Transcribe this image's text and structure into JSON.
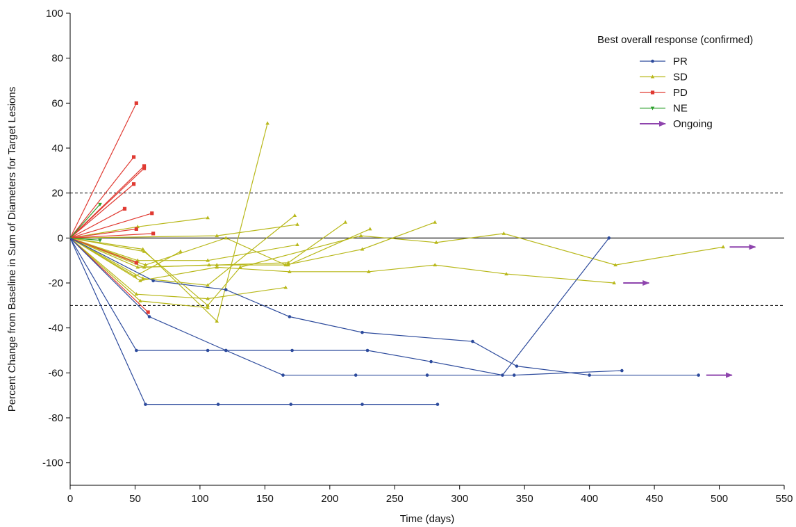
{
  "chart_data": {
    "type": "line",
    "title": "",
    "xlabel": "Time (days)",
    "ylabel": "Percent Change from Baseline in Sum of Diameters for Target Lesions",
    "xlim": [
      0,
      550
    ],
    "ylim": [
      -110,
      100
    ],
    "xticks": [
      0,
      50,
      100,
      150,
      200,
      250,
      300,
      350,
      400,
      450,
      500,
      550
    ],
    "yticks": [
      100,
      80,
      60,
      40,
      20,
      0,
      -20,
      -40,
      -60,
      -80,
      -100
    ],
    "reference_lines": [
      {
        "y": 20,
        "style": "dashed"
      },
      {
        "y": 0,
        "style": "solid"
      },
      {
        "y": -30,
        "style": "dashed"
      }
    ],
    "legend": {
      "title": "Best overall response (confirmed)",
      "placement": "top-right",
      "entries": [
        {
          "label": "PR",
          "color": "#2c4a9c",
          "marker": "circle"
        },
        {
          "label": "SD",
          "color": "#b8b81a",
          "marker": "triangle"
        },
        {
          "label": "PD",
          "color": "#e03a32",
          "marker": "square"
        },
        {
          "label": "NE",
          "color": "#2ca02c",
          "marker": "triangle-down"
        },
        {
          "label": "Ongoing",
          "color": "#8e44ad",
          "marker": "arrow"
        }
      ]
    },
    "series": [
      {
        "group": "PR",
        "color": "#2c4a9c",
        "points": [
          [
            0,
            0
          ],
          [
            51,
            -50
          ],
          [
            106,
            -50
          ],
          [
            120,
            -50
          ],
          [
            171,
            -50
          ],
          [
            229,
            -50
          ],
          [
            278,
            -55
          ],
          [
            333,
            -61
          ],
          [
            415,
            0
          ]
        ]
      },
      {
        "group": "PR",
        "color": "#2c4a9c",
        "points": [
          [
            0,
            0
          ],
          [
            58,
            -74
          ],
          [
            114,
            -74
          ],
          [
            170,
            -74
          ],
          [
            225,
            -74
          ],
          [
            283,
            -74
          ]
        ]
      },
      {
        "group": "PR",
        "color": "#2c4a9c",
        "points": [
          [
            0,
            0
          ],
          [
            61,
            -35
          ],
          [
            120,
            -50
          ],
          [
            164,
            -61
          ],
          [
            220,
            -61
          ],
          [
            275,
            -61
          ],
          [
            342,
            -61
          ],
          [
            425,
            -59
          ]
        ]
      },
      {
        "group": "PR",
        "color": "#2c4a9c",
        "points": [
          [
            0,
            0
          ],
          [
            64,
            -19
          ],
          [
            120,
            -23
          ],
          [
            169,
            -35
          ],
          [
            225,
            -42
          ],
          [
            310,
            -46
          ],
          [
            344,
            -57
          ],
          [
            400,
            -61
          ],
          [
            484,
            -61
          ]
        ]
      },
      {
        "group": "SD",
        "color": "#b8b81a",
        "points": [
          [
            0,
            0
          ],
          [
            52,
            5
          ],
          [
            106,
            9
          ]
        ]
      },
      {
        "group": "SD",
        "color": "#b8b81a",
        "points": [
          [
            0,
            0
          ],
          [
            113,
            1
          ],
          [
            175,
            6
          ]
        ]
      },
      {
        "group": "SD",
        "color": "#b8b81a",
        "points": [
          [
            0,
            0
          ],
          [
            56,
            -5
          ],
          [
            113,
            -37
          ],
          [
            152,
            51
          ]
        ]
      },
      {
        "group": "SD",
        "color": "#b8b81a",
        "points": [
          [
            0,
            0
          ],
          [
            52,
            -13
          ],
          [
            113,
            -12
          ],
          [
            168,
            -11
          ],
          [
            212,
            7
          ]
        ]
      },
      {
        "group": "SD",
        "color": "#b8b81a",
        "points": [
          [
            0,
            0
          ],
          [
            57,
            -13
          ],
          [
            107,
            -12
          ],
          [
            168,
            -12
          ],
          [
            231,
            4
          ]
        ]
      },
      {
        "group": "SD",
        "color": "#b8b81a",
        "points": [
          [
            0,
            0
          ],
          [
            58,
            -12
          ],
          [
            120,
            0
          ],
          [
            166,
            -12
          ],
          [
            225,
            -5
          ],
          [
            281,
            7
          ]
        ]
      },
      {
        "group": "SD",
        "color": "#b8b81a",
        "points": [
          [
            0,
            0
          ],
          [
            56,
            -18
          ],
          [
            106,
            -21
          ],
          [
            173,
            10
          ]
        ]
      },
      {
        "group": "SD",
        "color": "#b8b81a",
        "points": [
          [
            0,
            0
          ],
          [
            52,
            -10
          ],
          [
            106,
            -10
          ],
          [
            175,
            -3
          ]
        ]
      },
      {
        "group": "SD",
        "color": "#b8b81a",
        "points": [
          [
            0,
            0
          ],
          [
            50,
            -17
          ],
          [
            85,
            -6
          ]
        ]
      },
      {
        "group": "SD",
        "color": "#b8b81a",
        "points": [
          [
            0,
            0
          ],
          [
            54,
            -19
          ],
          [
            113,
            -13
          ],
          [
            169,
            -15
          ],
          [
            230,
            -15
          ],
          [
            281,
            -12
          ],
          [
            336,
            -16
          ],
          [
            419,
            -20
          ]
        ]
      },
      {
        "group": "SD",
        "color": "#b8b81a",
        "points": [
          [
            0,
            0
          ],
          [
            57,
            -6
          ],
          [
            106,
            -30
          ],
          [
            131,
            -13
          ],
          [
            224,
            1
          ],
          [
            282,
            -2
          ],
          [
            334,
            2
          ],
          [
            420,
            -12
          ],
          [
            503,
            -4
          ]
        ]
      },
      {
        "group": "SD",
        "color": "#b8b81a",
        "points": [
          [
            0,
            0
          ],
          [
            51,
            -25
          ],
          [
            106,
            -27
          ],
          [
            166,
            -22
          ]
        ]
      },
      {
        "group": "SD",
        "color": "#b8b81a",
        "points": [
          [
            0,
            0
          ],
          [
            54,
            -28
          ],
          [
            106,
            -31
          ]
        ]
      },
      {
        "group": "PD",
        "color": "#e03a32",
        "points": [
          [
            0,
            0
          ],
          [
            51,
            60
          ]
        ]
      },
      {
        "group": "PD",
        "color": "#e03a32",
        "points": [
          [
            0,
            0
          ],
          [
            49,
            36
          ]
        ]
      },
      {
        "group": "PD",
        "color": "#e03a32",
        "points": [
          [
            0,
            0
          ],
          [
            57,
            32
          ]
        ]
      },
      {
        "group": "PD",
        "color": "#e03a32",
        "points": [
          [
            0,
            0
          ],
          [
            57,
            31
          ]
        ]
      },
      {
        "group": "PD",
        "color": "#e03a32",
        "points": [
          [
            0,
            0
          ],
          [
            49,
            24
          ]
        ]
      },
      {
        "group": "PD",
        "color": "#e03a32",
        "points": [
          [
            0,
            0
          ],
          [
            42,
            13
          ]
        ]
      },
      {
        "group": "PD",
        "color": "#e03a32",
        "points": [
          [
            0,
            0
          ],
          [
            63,
            11
          ]
        ]
      },
      {
        "group": "PD",
        "color": "#e03a32",
        "points": [
          [
            0,
            0
          ],
          [
            51,
            4
          ]
        ]
      },
      {
        "group": "PD",
        "color": "#e03a32",
        "points": [
          [
            0,
            0
          ],
          [
            64,
            2
          ]
        ]
      },
      {
        "group": "PD",
        "color": "#e03a32",
        "points": [
          [
            0,
            0
          ],
          [
            51,
            -11
          ]
        ]
      },
      {
        "group": "PD",
        "color": "#e03a32",
        "points": [
          [
            0,
            0
          ],
          [
            60,
            -33
          ]
        ]
      },
      {
        "group": "NE",
        "color": "#2ca02c",
        "points": [
          [
            0,
            0
          ],
          [
            23,
            15
          ]
        ]
      },
      {
        "group": "NE",
        "color": "#2ca02c",
        "points": [
          [
            0,
            0
          ],
          [
            23,
            -1
          ]
        ]
      }
    ],
    "ongoing_arrows": [
      {
        "x": 508,
        "y": -4
      },
      {
        "x": 426,
        "y": -20
      },
      {
        "x": 490,
        "y": -61
      }
    ]
  }
}
